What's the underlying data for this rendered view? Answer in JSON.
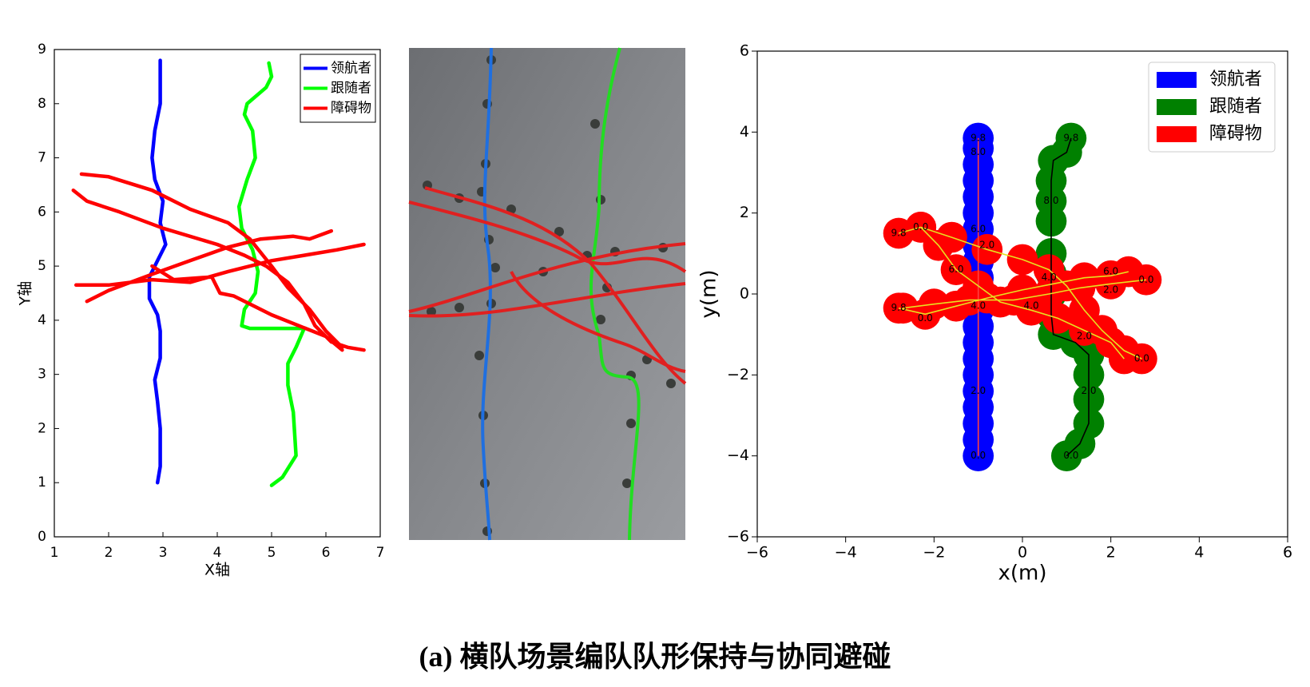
{
  "chart_data": [
    {
      "type": "line",
      "xlabel": "X轴",
      "ylabel": "Y轴",
      "xlim": [
        1,
        7
      ],
      "ylim": [
        0,
        9
      ],
      "xticks": [
        1,
        2,
        3,
        4,
        5,
        6,
        7
      ],
      "yticks": [
        0,
        1,
        2,
        3,
        4,
        5,
        6,
        7,
        8,
        9
      ],
      "legend": "upper right",
      "series": [
        {
          "name": "领航者",
          "color": "#0000ff",
          "x": [
            2.9,
            2.95,
            2.95,
            2.9,
            2.85,
            2.95,
            2.95,
            2.9,
            2.75,
            2.75,
            2.9,
            3.05,
            2.95,
            3.0,
            2.85,
            2.8,
            2.85,
            2.95,
            2.95
          ],
          "values": [
            1.0,
            1.3,
            2.0,
            2.5,
            2.9,
            3.3,
            3.8,
            4.1,
            4.4,
            4.8,
            5.1,
            5.4,
            5.8,
            6.2,
            6.6,
            7.0,
            7.5,
            8.0,
            8.8
          ]
        },
        {
          "name": "跟随者",
          "color": "#00ff00",
          "x": [
            5.0,
            5.2,
            5.45,
            5.4,
            5.3,
            5.3,
            5.45,
            5.6,
            5.3,
            4.6,
            4.45,
            4.5,
            4.7,
            4.75,
            4.65,
            4.45,
            4.4,
            4.55,
            4.7,
            4.65,
            4.5,
            4.55,
            4.9,
            5.0,
            4.95
          ],
          "values": [
            0.95,
            1.1,
            1.5,
            2.3,
            2.8,
            3.2,
            3.5,
            3.85,
            3.85,
            3.85,
            3.9,
            4.2,
            4.5,
            4.9,
            5.3,
            5.7,
            6.1,
            6.6,
            7.0,
            7.5,
            7.8,
            8.0,
            8.3,
            8.5,
            8.75
          ]
        },
        {
          "name": "障碍物",
          "color": "#ff0000",
          "x": [
            1.5,
            2.0,
            2.8,
            3.5,
            4.2,
            4.6,
            5.0,
            5.3,
            5.7,
            6.0,
            6.3,
            null,
            1.35,
            1.6,
            2.2,
            3.0,
            4.0,
            4.5,
            4.9,
            5.3,
            5.6,
            5.8,
            6.1,
            6.4,
            6.7,
            null,
            1.6,
            2.0,
            2.8,
            3.5,
            4.2,
            4.8,
            5.4,
            5.7,
            6.1,
            null,
            1.4,
            2.0,
            2.8,
            3.5,
            4.2,
            5.0,
            5.6,
            6.2,
            6.7,
            null,
            2.8,
            3.2,
            3.9,
            4.05,
            4.3,
            5.0,
            5.5,
            6.0,
            6.3
          ],
          "values": [
            6.7,
            6.65,
            6.4,
            6.05,
            5.8,
            5.5,
            5.0,
            4.6,
            4.2,
            3.8,
            3.5,
            null,
            6.4,
            6.2,
            6.0,
            5.7,
            5.4,
            5.2,
            5.0,
            4.7,
            4.3,
            3.9,
            3.6,
            3.5,
            3.45,
            null,
            4.35,
            4.55,
            4.85,
            5.1,
            5.35,
            5.5,
            5.55,
            5.5,
            5.65,
            null,
            4.65,
            4.65,
            4.75,
            4.7,
            4.9,
            5.1,
            5.2,
            5.3,
            5.4,
            null,
            5.0,
            4.75,
            4.8,
            4.5,
            4.45,
            4.1,
            3.9,
            3.7,
            3.45
          ]
        }
      ]
    },
    {
      "type": "scatter",
      "xlabel": "x(m)",
      "ylabel": "y(m)",
      "xlim": [
        -6,
        6
      ],
      "ylim": [
        -6,
        6
      ],
      "xticks": [
        {
          "value": -6,
          "label": "−6"
        },
        {
          "value": -4,
          "label": "−4"
        },
        {
          "value": -2,
          "label": "−2"
        },
        0,
        2,
        4,
        6
      ],
      "yticks": [
        {
          "value": -6,
          "label": "−6"
        },
        {
          "value": -4,
          "label": "−4"
        },
        {
          "value": -2,
          "label": "−2"
        },
        0,
        2,
        4,
        6
      ],
      "legend": "upper right",
      "series": [
        {
          "name": "领航者",
          "color": "#0000ff",
          "line_color": "#ff4040",
          "x": [
            -1,
            -1,
            -1,
            -1,
            -1,
            -1,
            -1,
            -1,
            -1,
            -1,
            -1,
            -1,
            -1,
            -1,
            -1,
            -1,
            -1,
            -1,
            -1,
            -1,
            -1
          ],
          "values": [
            -4,
            -3.6,
            -3.2,
            -2.8,
            -2.4,
            -2,
            -1.6,
            -1.2,
            -0.8,
            -0.4,
            0,
            0.4,
            0.8,
            1.2,
            1.6,
            2,
            2.4,
            2.8,
            3.2,
            3.6,
            3.85
          ]
        },
        {
          "name": "跟随者",
          "color": "#008000",
          "line_color": "#000000",
          "x": [
            1,
            1.3,
            1.5,
            1.5,
            1.5,
            1.5,
            1.2,
            0.7,
            0.65,
            0.65,
            0.65,
            0.65,
            0.65,
            0.65,
            0.65,
            0.7,
            1.0,
            1.1
          ],
          "values": [
            -4,
            -3.7,
            -3.2,
            -2.6,
            -2,
            -1.5,
            -1.2,
            -1.0,
            -0.5,
            0,
            0.5,
            1,
            1.8,
            2.3,
            2.8,
            3.3,
            3.5,
            3.85
          ]
        },
        {
          "name": "障碍物",
          "color": "#ff0000",
          "line_color": "#e8e020",
          "x": [
            -2.8,
            -2.3,
            -1.6,
            -0.8,
            0,
            0.6,
            1.0,
            1.4,
            1.8,
            2.3,
            2.7,
            null,
            -2.3,
            -1.9,
            -1.5,
            -1,
            -0.5,
            0.2,
            0.8,
            1.4,
            2.0,
            2.3,
            null,
            -2.8,
            -2.2,
            -1.5,
            -0.8,
            0,
            0.7,
            1.4,
            2.0,
            2.4,
            null,
            -2.7,
            -2,
            -1.2,
            -0.2,
            0.6,
            1.3,
            2,
            2.8
          ],
          "values": [
            1.5,
            1.65,
            1.4,
            1.1,
            0.85,
            0.6,
            0.2,
            -0.4,
            -0.9,
            -1.4,
            -1.6,
            null,
            1.65,
            1.2,
            0.6,
            0.2,
            -0.2,
            -0.4,
            -0.6,
            -0.9,
            -1.2,
            -1.6,
            null,
            -0.35,
            -0.5,
            -0.3,
            -0.1,
            0.1,
            0.25,
            0.4,
            0.45,
            0.55,
            null,
            -0.35,
            -0.25,
            -0.15,
            -0.15,
            0,
            0.15,
            0.25,
            0.35
          ]
        }
      ],
      "annotations": [
        {
          "text": "0.0",
          "x": -1,
          "y": -4
        },
        {
          "text": "2.0",
          "x": -1,
          "y": -2.4
        },
        {
          "text": "4.0",
          "x": -1,
          "y": -0.3
        },
        {
          "text": "6.0",
          "x": -1,
          "y": 1.6
        },
        {
          "text": "8.0",
          "x": -1,
          "y": 3.5
        },
        {
          "text": "9.8",
          "x": -1,
          "y": 3.85
        },
        {
          "text": "0.0",
          "x": 1.1,
          "y": -4
        },
        {
          "text": "2.0",
          "x": 1.5,
          "y": -2.4
        },
        {
          "text": "4.0",
          "x": 0.6,
          "y": 0.4
        },
        {
          "text": "8.0",
          "x": 0.65,
          "y": 2.3
        },
        {
          "text": "9.8",
          "x": 1.1,
          "y": 3.85
        },
        {
          "text": "9.8",
          "x": -2.8,
          "y": 1.5
        },
        {
          "text": "0.0",
          "x": -2.3,
          "y": 1.65
        },
        {
          "text": "6.0",
          "x": -1.5,
          "y": 0.6
        },
        {
          "text": "2.0",
          "x": -0.8,
          "y": 1.2
        },
        {
          "text": "4.0",
          "x": 0.2,
          "y": -0.3
        },
        {
          "text": "2.0",
          "x": 1.4,
          "y": -1.05
        },
        {
          "text": "0.0",
          "x": 2.7,
          "y": -1.6
        },
        {
          "text": "0.0",
          "x": 2.8,
          "y": 0.35
        },
        {
          "text": "6.0",
          "x": 2.0,
          "y": 0.55
        },
        {
          "text": "9.8",
          "x": -2.8,
          "y": -0.35
        },
        {
          "text": "0.0",
          "x": -2.2,
          "y": -0.6
        },
        {
          "text": "2.0",
          "x": 2.0,
          "y": 0.1
        }
      ]
    }
  ],
  "caption_label": "(a)",
  "caption": "横队场景编队队形保持与协同避碰"
}
